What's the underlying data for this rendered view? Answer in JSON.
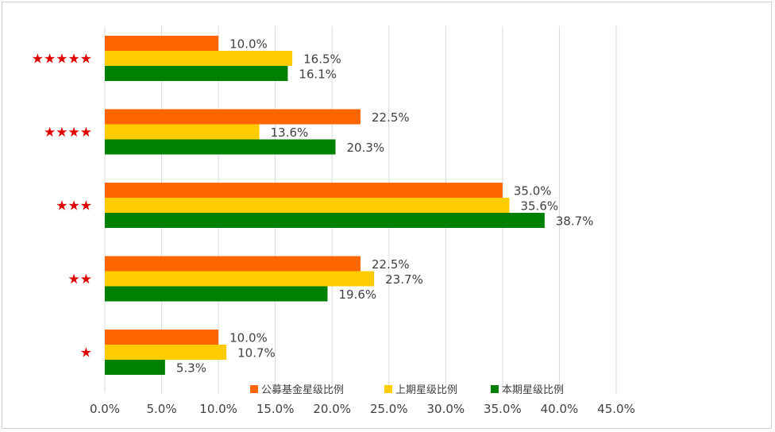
{
  "chart_data": {
    "type": "bar",
    "orientation": "horizontal",
    "title": "",
    "xlabel": "",
    "ylabel": "",
    "categories": [
      "★★★★★",
      "★★★★",
      "★★★",
      "★★",
      "★"
    ],
    "series": [
      {
        "name": "公募基金星级比例",
        "color": "#ff6600",
        "values": [
          10.0,
          22.5,
          35.0,
          22.5,
          10.0
        ],
        "labels": [
          "10.0%",
          "22.5%",
          "35.0%",
          "22.5%",
          "10.0%"
        ]
      },
      {
        "name": "上期星级比例",
        "color": "#ffcc00",
        "values": [
          16.5,
          13.6,
          35.6,
          23.7,
          10.7
        ],
        "labels": [
          "16.5%",
          "13.6%",
          "35.6%",
          "23.7%",
          "10.7%"
        ]
      },
      {
        "name": "本期星级比例",
        "color": "#008000",
        "values": [
          16.1,
          20.3,
          38.7,
          19.6,
          5.3
        ],
        "labels": [
          "16.1%",
          "20.3%",
          "38.7%",
          "19.6%",
          "5.3%"
        ]
      }
    ],
    "xlim": [
      0,
      45
    ],
    "x_ticks": [
      0,
      5,
      10,
      15,
      20,
      25,
      30,
      35,
      40,
      45
    ],
    "x_tick_labels": [
      "0.0%",
      "5.0%",
      "10.0%",
      "15.0%",
      "20.0%",
      "25.0%",
      "30.0%",
      "35.0%",
      "40.0%",
      "45.0%"
    ],
    "grid": "vertical",
    "legend_position": "bottom",
    "category_label_color": "#e00000",
    "gridline_color": "#d9d9d9"
  }
}
